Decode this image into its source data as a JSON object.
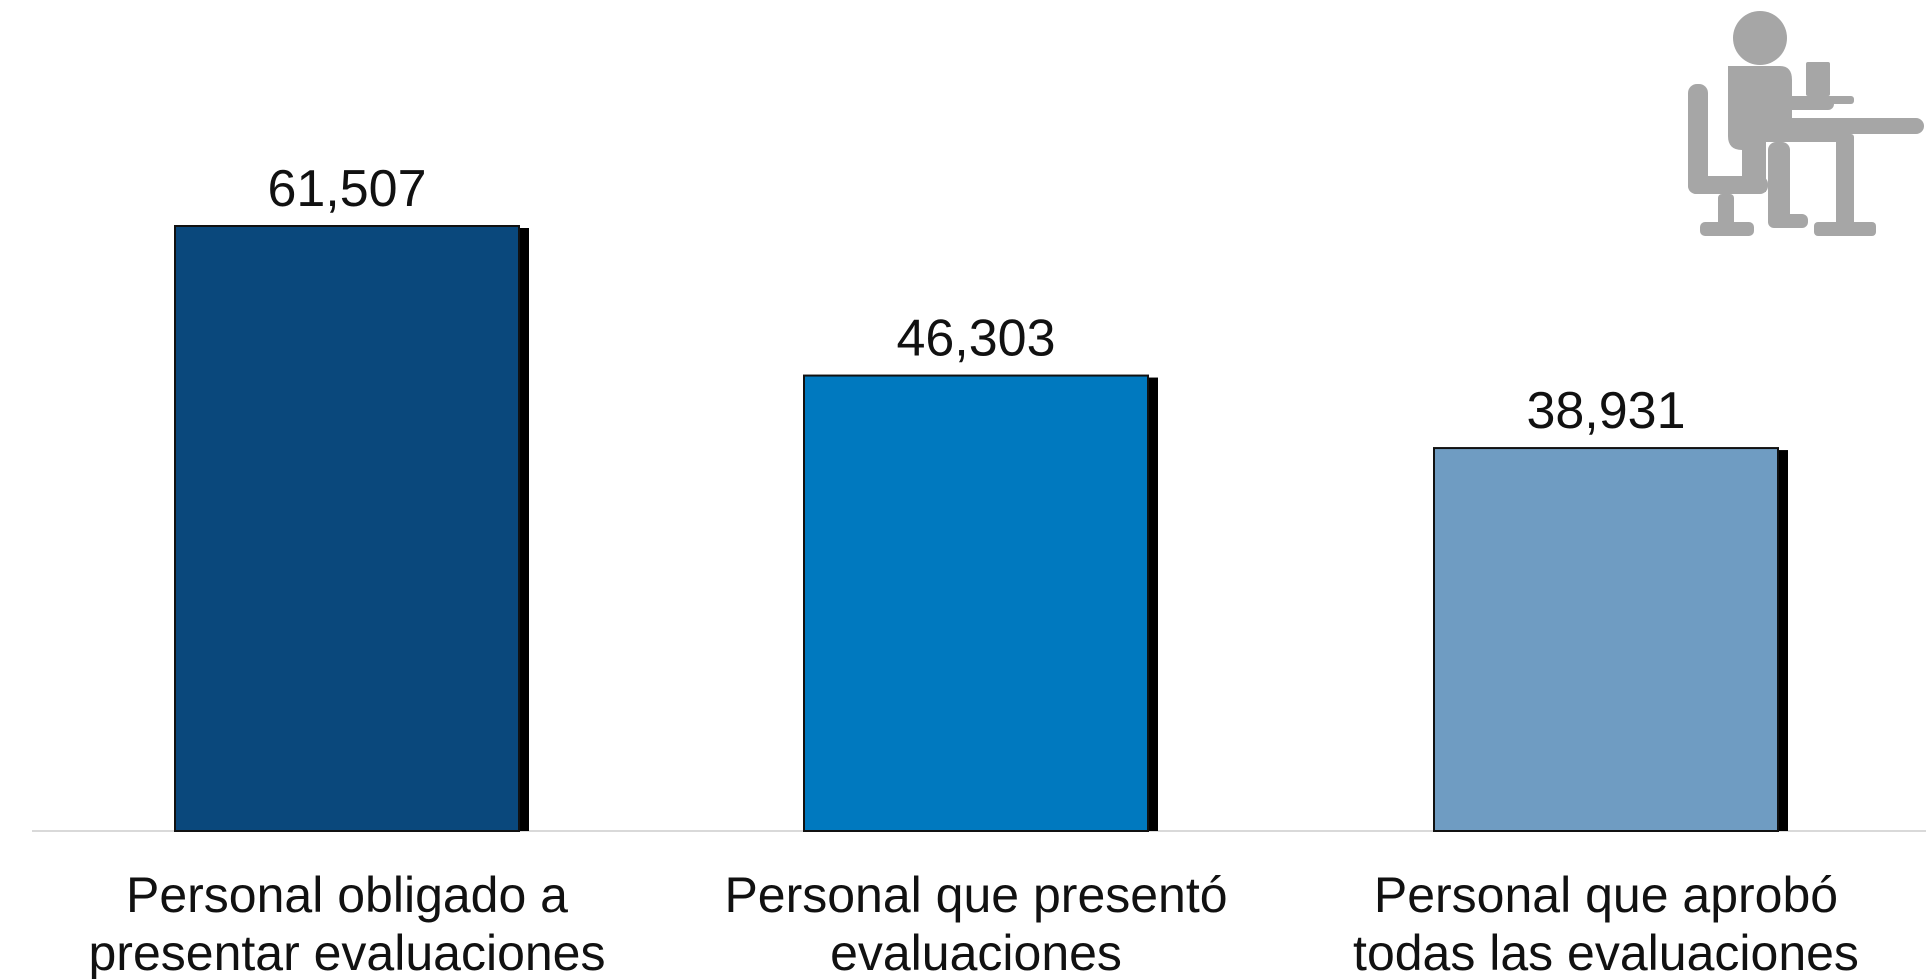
{
  "chart_data": {
    "type": "bar",
    "categories": [
      [
        "Personal obligado a",
        "presentar evaluaciones"
      ],
      [
        "Personal que presentó",
        "evaluaciones"
      ],
      [
        "Personal que aprobó",
        "todas las evaluaciones"
      ]
    ],
    "values": [
      61507,
      46303,
      38931
    ],
    "value_labels": [
      "61,507",
      "46,303",
      "38,931"
    ],
    "colors": [
      "#0a487c",
      "#0079bf",
      "#6f9cc2"
    ],
    "ylim": [
      0,
      70000
    ],
    "grid": false,
    "legend": "none"
  },
  "icon": "person-at-desk-icon"
}
